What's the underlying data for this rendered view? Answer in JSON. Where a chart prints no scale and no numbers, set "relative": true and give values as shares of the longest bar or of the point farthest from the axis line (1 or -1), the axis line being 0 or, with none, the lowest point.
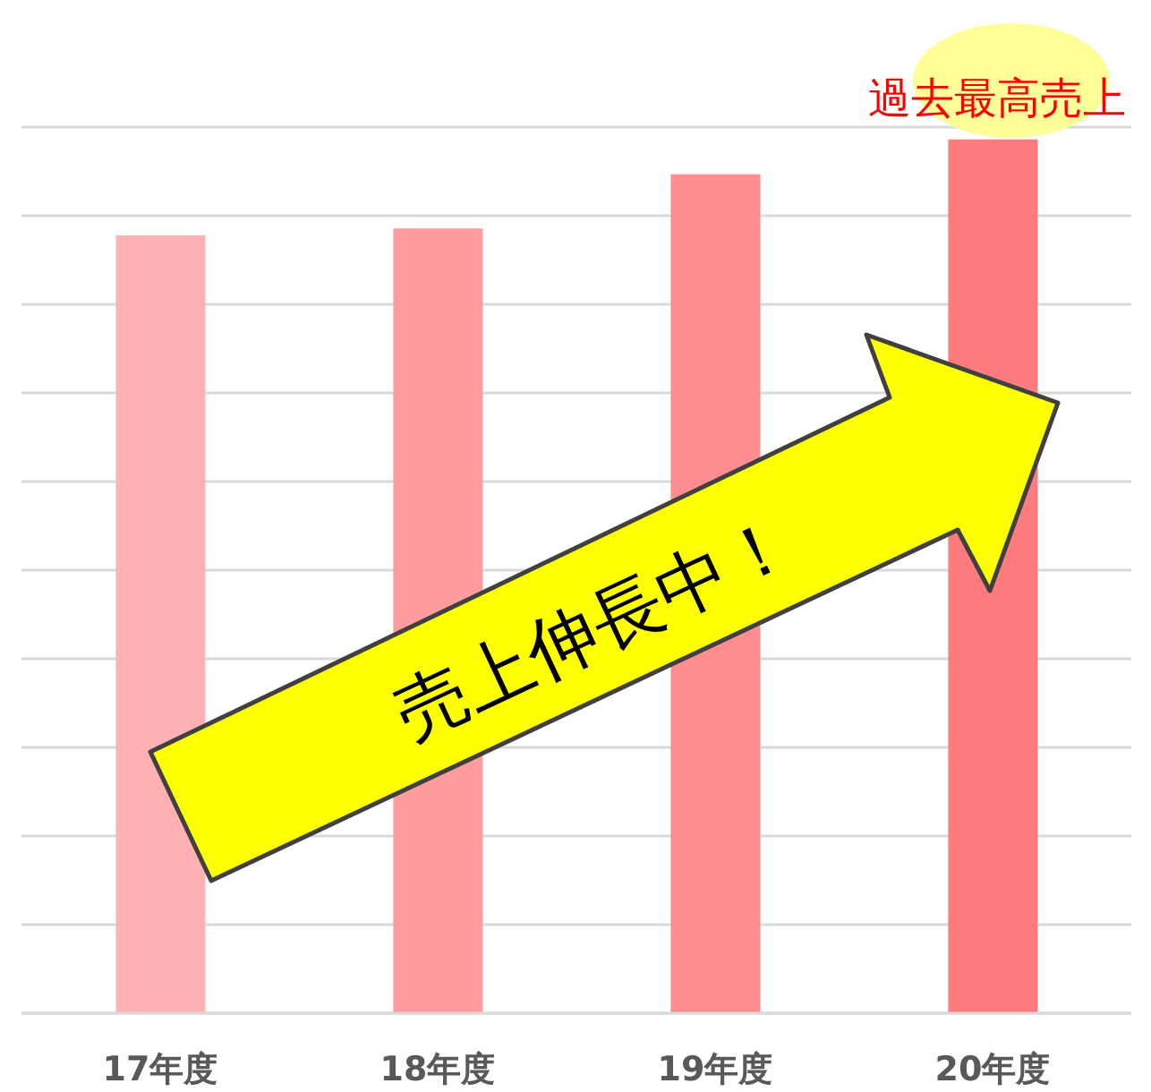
{
  "chart_data": {
    "type": "bar",
    "relative": true,
    "categories": [
      "17年度",
      "18年度",
      "19年度",
      "20年度"
    ],
    "values": [
      0.89,
      0.898,
      0.96,
      1
    ],
    "colors": [
      "#ffb1b3",
      "#ff9c9e",
      "#ff8c8f",
      "#ff7b7d"
    ],
    "grid": "y",
    "annotations": [
      "売上伸長中！",
      "過去最高売上"
    ]
  }
}
